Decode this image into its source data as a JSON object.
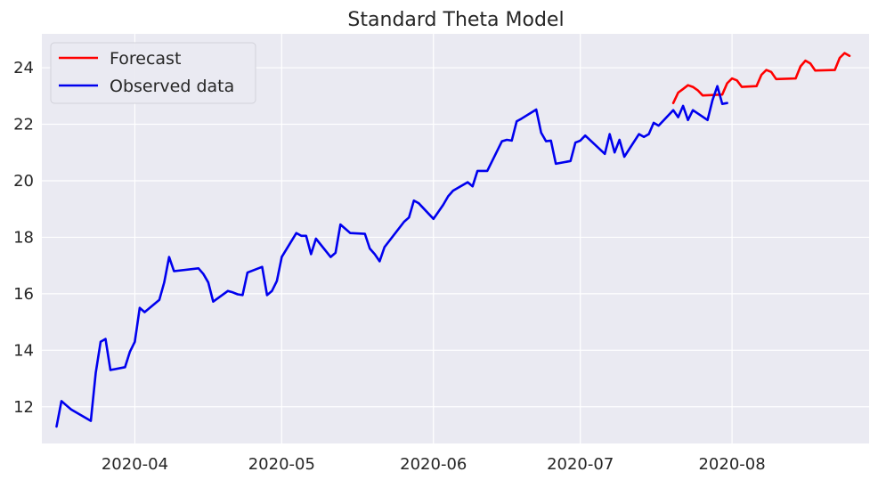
{
  "chart_data": {
    "type": "line",
    "title": "Standard Theta Model",
    "xlabel": "",
    "ylabel": "",
    "x_type": "date",
    "xlim": [
      "2020-03-13",
      "2020-08-29"
    ],
    "ylim": [
      10.7,
      25.2
    ],
    "x_ticks": [
      "2020-04-01",
      "2020-05-01",
      "2020-06-01",
      "2020-07-01",
      "2020-08-01"
    ],
    "x_tick_labels": [
      "2020-04",
      "2020-05",
      "2020-06",
      "2020-07",
      "2020-08"
    ],
    "y_ticks": [
      12,
      14,
      16,
      18,
      20,
      22,
      24
    ],
    "y_tick_labels": [
      "12",
      "14",
      "16",
      "18",
      "20",
      "22",
      "24"
    ],
    "grid": true,
    "legend_position": "top-left",
    "background": "#eaeaf2",
    "series": [
      {
        "name": "Forecast",
        "color": "#ff0000",
        "points": [
          [
            "2020-07-20",
            22.75
          ],
          [
            "2020-07-21",
            23.12
          ],
          [
            "2020-07-22",
            23.25
          ],
          [
            "2020-07-23",
            23.38
          ],
          [
            "2020-07-24",
            23.32
          ],
          [
            "2020-07-25",
            23.2
          ],
          [
            "2020-07-26",
            23.02
          ],
          [
            "2020-07-30",
            23.05
          ],
          [
            "2020-07-31",
            23.45
          ],
          [
            "2020-08-01",
            23.62
          ],
          [
            "2020-08-02",
            23.55
          ],
          [
            "2020-08-03",
            23.32
          ],
          [
            "2020-08-06",
            23.35
          ],
          [
            "2020-08-07",
            23.75
          ],
          [
            "2020-08-08",
            23.92
          ],
          [
            "2020-08-09",
            23.85
          ],
          [
            "2020-08-10",
            23.6
          ],
          [
            "2020-08-14",
            23.62
          ],
          [
            "2020-08-15",
            24.05
          ],
          [
            "2020-08-16",
            24.25
          ],
          [
            "2020-08-17",
            24.15
          ],
          [
            "2020-08-18",
            23.9
          ],
          [
            "2020-08-22",
            23.92
          ],
          [
            "2020-08-23",
            24.35
          ],
          [
            "2020-08-24",
            24.52
          ],
          [
            "2020-08-25",
            24.42
          ]
        ]
      },
      {
        "name": "Observed data",
        "color": "#0000ee",
        "points": [
          [
            "2020-03-16",
            11.3
          ],
          [
            "2020-03-17",
            12.2
          ],
          [
            "2020-03-18",
            12.05
          ],
          [
            "2020-03-19",
            11.9
          ],
          [
            "2020-03-23",
            11.5
          ],
          [
            "2020-03-24",
            13.2
          ],
          [
            "2020-03-25",
            14.3
          ],
          [
            "2020-03-26",
            14.4
          ],
          [
            "2020-03-27",
            13.3
          ],
          [
            "2020-03-30",
            13.4
          ],
          [
            "2020-03-31",
            13.95
          ],
          [
            "2020-04-01",
            14.3
          ],
          [
            "2020-04-02",
            15.5
          ],
          [
            "2020-04-03",
            15.35
          ],
          [
            "2020-04-06",
            15.78
          ],
          [
            "2020-04-07",
            16.4
          ],
          [
            "2020-04-08",
            17.3
          ],
          [
            "2020-04-09",
            16.8
          ],
          [
            "2020-04-14",
            16.9
          ],
          [
            "2020-04-15",
            16.7
          ],
          [
            "2020-04-16",
            16.4
          ],
          [
            "2020-04-17",
            15.72
          ],
          [
            "2020-04-20",
            16.1
          ],
          [
            "2020-04-21",
            16.05
          ],
          [
            "2020-04-22",
            15.98
          ],
          [
            "2020-04-23",
            15.95
          ],
          [
            "2020-04-24",
            16.75
          ],
          [
            "2020-04-27",
            16.95
          ],
          [
            "2020-04-28",
            15.95
          ],
          [
            "2020-04-29",
            16.1
          ],
          [
            "2020-04-30",
            16.45
          ],
          [
            "2020-05-01",
            17.3
          ],
          [
            "2020-05-04",
            18.15
          ],
          [
            "2020-05-05",
            18.05
          ],
          [
            "2020-05-06",
            18.05
          ],
          [
            "2020-05-07",
            17.4
          ],
          [
            "2020-05-08",
            17.95
          ],
          [
            "2020-05-11",
            17.3
          ],
          [
            "2020-05-12",
            17.45
          ],
          [
            "2020-05-13",
            18.45
          ],
          [
            "2020-05-14",
            18.3
          ],
          [
            "2020-05-15",
            18.15
          ],
          [
            "2020-05-18",
            18.12
          ],
          [
            "2020-05-19",
            17.6
          ],
          [
            "2020-05-20",
            17.4
          ],
          [
            "2020-05-21",
            17.15
          ],
          [
            "2020-05-22",
            17.65
          ],
          [
            "2020-05-26",
            18.55
          ],
          [
            "2020-05-27",
            18.7
          ],
          [
            "2020-05-28",
            19.3
          ],
          [
            "2020-05-29",
            19.2
          ],
          [
            "2020-06-01",
            18.65
          ],
          [
            "2020-06-02",
            18.9
          ],
          [
            "2020-06-03",
            19.15
          ],
          [
            "2020-06-04",
            19.45
          ],
          [
            "2020-06-05",
            19.65
          ],
          [
            "2020-06-08",
            19.95
          ],
          [
            "2020-06-09",
            19.8
          ],
          [
            "2020-06-10",
            20.35
          ],
          [
            "2020-06-11",
            20.35
          ],
          [
            "2020-06-12",
            20.35
          ],
          [
            "2020-06-15",
            21.4
          ],
          [
            "2020-06-16",
            21.45
          ],
          [
            "2020-06-17",
            21.42
          ],
          [
            "2020-06-18",
            22.1
          ],
          [
            "2020-06-19",
            22.2
          ],
          [
            "2020-06-22",
            22.52
          ],
          [
            "2020-06-23",
            21.7
          ],
          [
            "2020-06-24",
            21.4
          ],
          [
            "2020-06-25",
            21.42
          ],
          [
            "2020-06-26",
            20.6
          ],
          [
            "2020-06-29",
            20.7
          ],
          [
            "2020-06-30",
            21.35
          ],
          [
            "2020-07-01",
            21.42
          ],
          [
            "2020-07-02",
            21.6
          ],
          [
            "2020-07-06",
            20.95
          ],
          [
            "2020-07-07",
            21.65
          ],
          [
            "2020-07-08",
            21.0
          ],
          [
            "2020-07-09",
            21.45
          ],
          [
            "2020-07-10",
            20.85
          ],
          [
            "2020-07-13",
            21.65
          ],
          [
            "2020-07-14",
            21.55
          ],
          [
            "2020-07-15",
            21.65
          ],
          [
            "2020-07-16",
            22.05
          ],
          [
            "2020-07-17",
            21.95
          ],
          [
            "2020-07-20",
            22.5
          ],
          [
            "2020-07-21",
            22.25
          ],
          [
            "2020-07-22",
            22.65
          ],
          [
            "2020-07-23",
            22.15
          ],
          [
            "2020-07-24",
            22.5
          ],
          [
            "2020-07-27",
            22.15
          ],
          [
            "2020-07-28",
            22.85
          ],
          [
            "2020-07-29",
            23.35
          ],
          [
            "2020-07-30",
            22.72
          ],
          [
            "2020-07-31",
            22.75
          ]
        ]
      }
    ]
  }
}
